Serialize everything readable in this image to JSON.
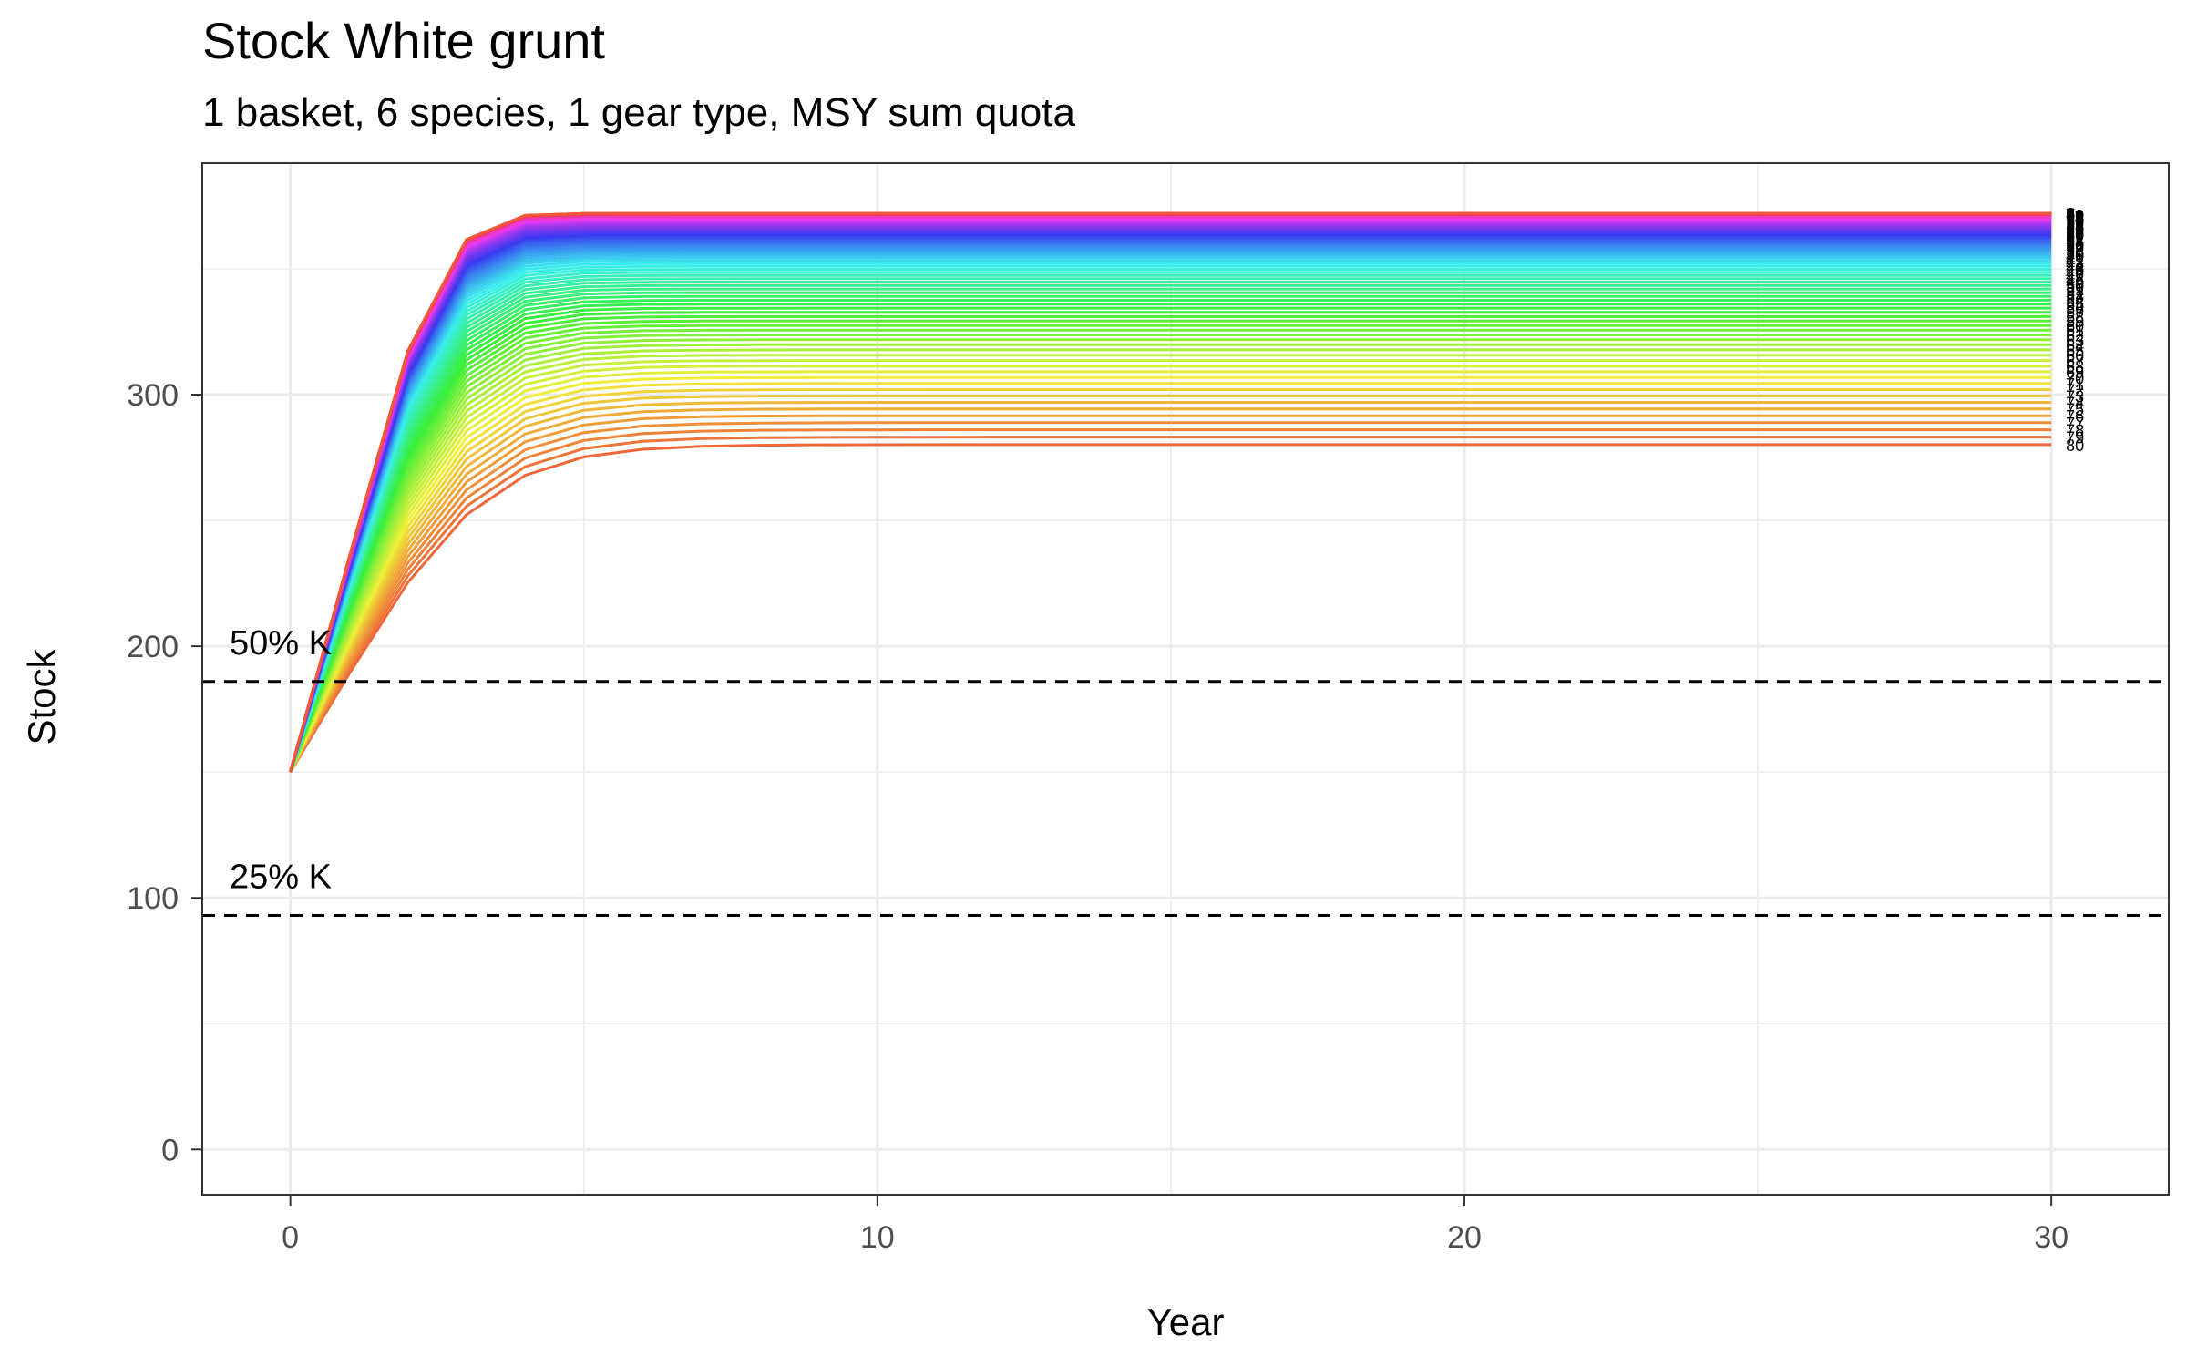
{
  "chart_data": {
    "type": "line",
    "title": "Stock White grunt",
    "subtitle": "1 basket, 6 species, 1 gear type, MSY sum quota",
    "xlabel": "Year",
    "ylabel": "Stock",
    "xlim": [
      -1.5,
      32
    ],
    "ylim": [
      -18,
      392
    ],
    "xticks": [
      0,
      10,
      20,
      30
    ],
    "yticks": [
      0,
      100,
      200,
      300
    ],
    "grid": true,
    "legend": "none",
    "series_generator": {
      "count": 80,
      "years": [
        0,
        30
      ],
      "start_value": 150,
      "carrying_capacity": 372,
      "growth_rate": 0.95,
      "note_free": true
    },
    "end_labels": [
      "1",
      "2",
      "3",
      "4",
      "5",
      "6",
      "7",
      "8",
      "9",
      "10",
      "11",
      "12",
      "13",
      "14",
      "15",
      "16",
      "17",
      "18",
      "19",
      "20",
      "21",
      "22",
      "23",
      "24",
      "25",
      "26",
      "27",
      "28",
      "29",
      "30",
      "31",
      "32",
      "33",
      "34",
      "35",
      "36",
      "37",
      "38",
      "39",
      "40",
      "41",
      "42",
      "43",
      "44",
      "45",
      "46",
      "47",
      "48",
      "49",
      "50",
      "51",
      "52",
      "53",
      "54",
      "55",
      "56",
      "57",
      "58",
      "59",
      "60",
      "61",
      "62",
      "63",
      "64",
      "65",
      "66",
      "67",
      "68",
      "69",
      "70",
      "71",
      "72",
      "73",
      "74",
      "75",
      "76",
      "77",
      "78",
      "79",
      "80"
    ],
    "reference_lines": [
      {
        "label": "50% K",
        "y": 186
      },
      {
        "label": "25% K",
        "y": 93
      }
    ]
  }
}
